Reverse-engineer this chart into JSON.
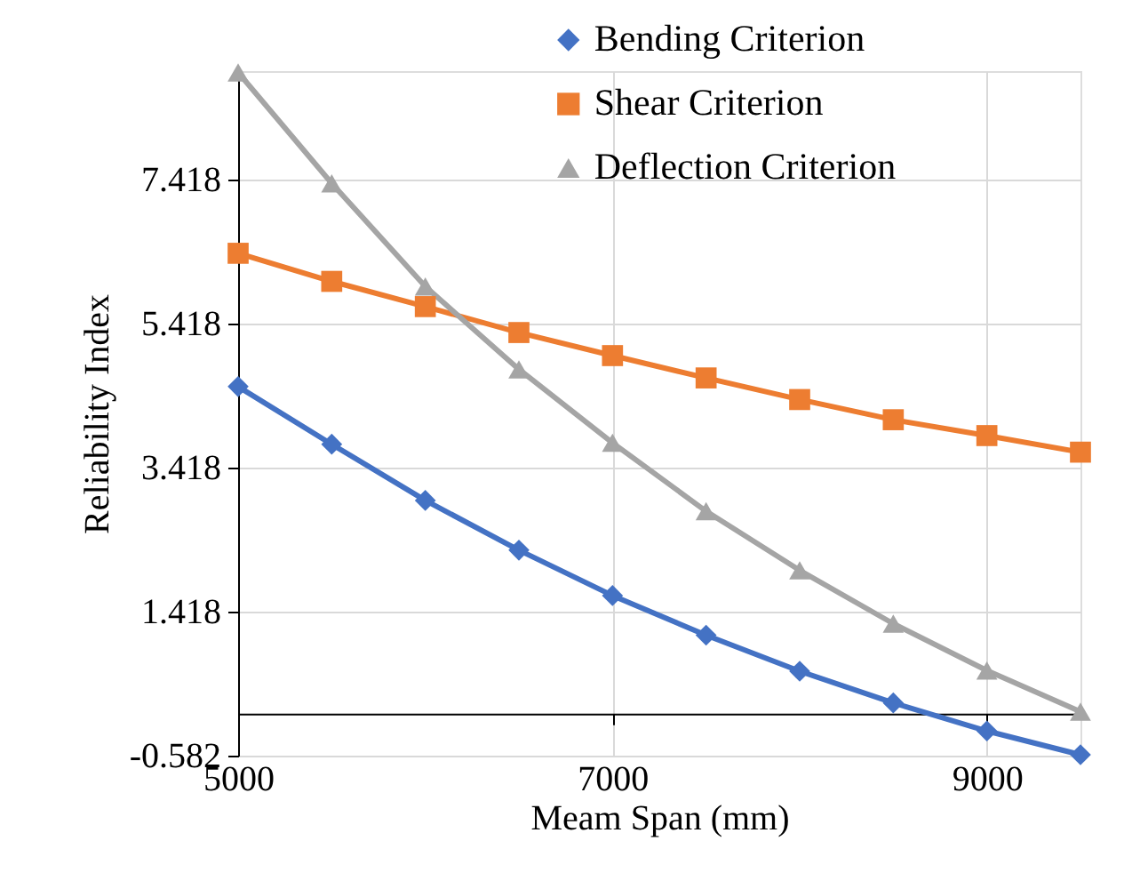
{
  "chart_data": {
    "type": "line",
    "xlabel": "Meam Span (mm)",
    "ylabel": "Reliability Index",
    "x": [
      5000,
      5500,
      6000,
      6500,
      7000,
      7500,
      8000,
      8500,
      9000,
      9500
    ],
    "xlim": [
      5000,
      9500
    ],
    "xticks": [
      5000,
      7000,
      9000
    ],
    "ylim": [
      -0.582,
      8.918
    ],
    "yticks": [
      -0.582,
      1.418,
      3.418,
      5.418,
      7.418
    ],
    "grid": true,
    "legend": "top right",
    "series": [
      {
        "name": "Bending Criterion",
        "color": "#4472c4",
        "marker": "diamond",
        "values": [
          4.54,
          3.74,
          2.96,
          2.27,
          1.64,
          1.09,
          0.59,
          0.15,
          -0.24,
          -0.57
        ]
      },
      {
        "name": "Shear Criterion",
        "color": "#ed7d31",
        "marker": "square",
        "values": [
          6.39,
          6.0,
          5.65,
          5.29,
          4.97,
          4.66,
          4.36,
          4.08,
          3.86,
          3.63
        ]
      },
      {
        "name": "Deflection Criterion",
        "color": "#a5a5a5",
        "marker": "triangle",
        "values": [
          8.9,
          7.36,
          5.93,
          4.78,
          3.76,
          2.81,
          1.99,
          1.25,
          0.6,
          0.03
        ]
      }
    ]
  }
}
